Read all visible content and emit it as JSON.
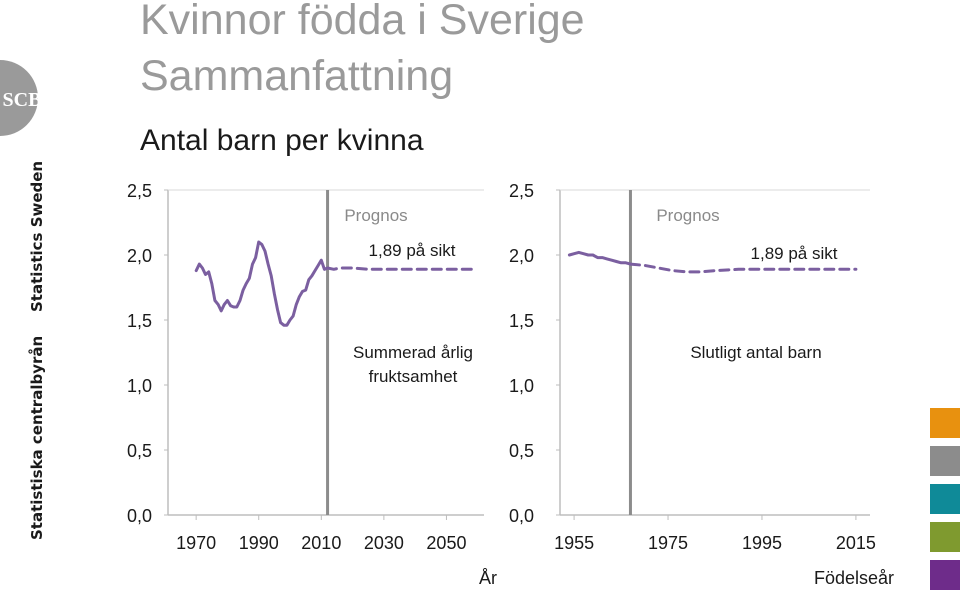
{
  "header": {
    "title_line1": "Kvinnor födda i Sverige",
    "title_line2": "Sammanfattning",
    "subtitle": "Antal barn per kvinna"
  },
  "logo": {
    "text": "SCB",
    "icon": "scb-logo-icon",
    "color": "#9a9a9a"
  },
  "brand": {
    "line1": "Statistiska centralbyrån",
    "line2": "Statistics Sweden"
  },
  "swatches": [
    "#e8910f",
    "#8c8c8c",
    "#0f8a98",
    "#7f9a2f",
    "#6e2c8a"
  ],
  "colors": {
    "series": "#7b5fa0",
    "divider": "#8c8c8c"
  },
  "chart_data": [
    {
      "type": "line",
      "xlim": [
        1961,
        2062
      ],
      "ylim": [
        0,
        2.5
      ],
      "xticks": [
        "1970",
        "1990",
        "2010",
        "2030",
        "2050"
      ],
      "xtick_values": [
        1970,
        1990,
        2010,
        2030,
        2050
      ],
      "yticks": [
        "0,0",
        "0,5",
        "1,0",
        "1,5",
        "2,0",
        "2,5"
      ],
      "ytick_values": [
        0,
        0.5,
        1.0,
        1.5,
        2.0,
        2.5
      ],
      "xlabel": "År",
      "divider_x": 2012,
      "annotations": {
        "prognos": "Prognos",
        "long_run": "1,89 på sikt",
        "series_label_line1": "Summerad årlig",
        "series_label_line2": "fruktsamhet"
      },
      "series": [
        {
          "style": "solid",
          "x": [
            1970,
            1971,
            1972,
            1973,
            1974,
            1975,
            1976,
            1977,
            1978,
            1979,
            1980,
            1981,
            1982,
            1983,
            1984,
            1985,
            1986,
            1987,
            1988,
            1989,
            1990,
            1991,
            1992,
            1993,
            1994,
            1995,
            1996,
            1997,
            1998,
            1999,
            2000,
            2001,
            2002,
            2003,
            2004,
            2005,
            2006,
            2007,
            2008,
            2009,
            2010,
            2011,
            2012
          ],
          "y": [
            1.88,
            1.93,
            1.9,
            1.85,
            1.87,
            1.78,
            1.65,
            1.62,
            1.57,
            1.62,
            1.65,
            1.61,
            1.6,
            1.6,
            1.65,
            1.73,
            1.78,
            1.82,
            1.93,
            1.98,
            2.1,
            2.08,
            2.03,
            1.93,
            1.84,
            1.7,
            1.58,
            1.48,
            1.46,
            1.46,
            1.5,
            1.53,
            1.62,
            1.68,
            1.72,
            1.73,
            1.81,
            1.84,
            1.88,
            1.92,
            1.96,
            1.89,
            1.9
          ]
        },
        {
          "style": "dashed",
          "x": [
            2012,
            2014,
            2016,
            2020,
            2025,
            2030,
            2040,
            2050,
            2058
          ],
          "y": [
            1.9,
            1.89,
            1.9,
            1.9,
            1.89,
            1.89,
            1.89,
            1.89,
            1.89
          ]
        }
      ]
    },
    {
      "type": "line",
      "xlim": [
        1952,
        2018
      ],
      "ylim": [
        0,
        2.5
      ],
      "xticks": [
        "1955",
        "1975",
        "1995",
        "2015"
      ],
      "xtick_values": [
        1955,
        1975,
        1995,
        2015
      ],
      "yticks": [
        "0,0",
        "0,5",
        "1,0",
        "1,5",
        "2,0",
        "2,5"
      ],
      "ytick_values": [
        0,
        0.5,
        1.0,
        1.5,
        2.0,
        2.5
      ],
      "xlabel": "Födelseår",
      "divider_x": 1967,
      "annotations": {
        "prognos": "Prognos",
        "long_run": "1,89 på sikt",
        "series_label": "Slutligt antal barn"
      },
      "series": [
        {
          "style": "solid",
          "x": [
            1954,
            1955,
            1956,
            1957,
            1958,
            1959,
            1960,
            1961,
            1962,
            1963,
            1964,
            1965,
            1966,
            1967
          ],
          "y": [
            2.0,
            2.01,
            2.02,
            2.01,
            2.0,
            2.0,
            1.98,
            1.98,
            1.97,
            1.96,
            1.95,
            1.94,
            1.94,
            1.93
          ]
        },
        {
          "style": "dashed",
          "x": [
            1967,
            1970,
            1973,
            1976,
            1979,
            1982,
            1985,
            1990,
            1995,
            2000,
            2005,
            2010,
            2015
          ],
          "y": [
            1.93,
            1.92,
            1.9,
            1.88,
            1.87,
            1.87,
            1.88,
            1.89,
            1.89,
            1.89,
            1.89,
            1.89,
            1.89
          ]
        }
      ]
    }
  ]
}
